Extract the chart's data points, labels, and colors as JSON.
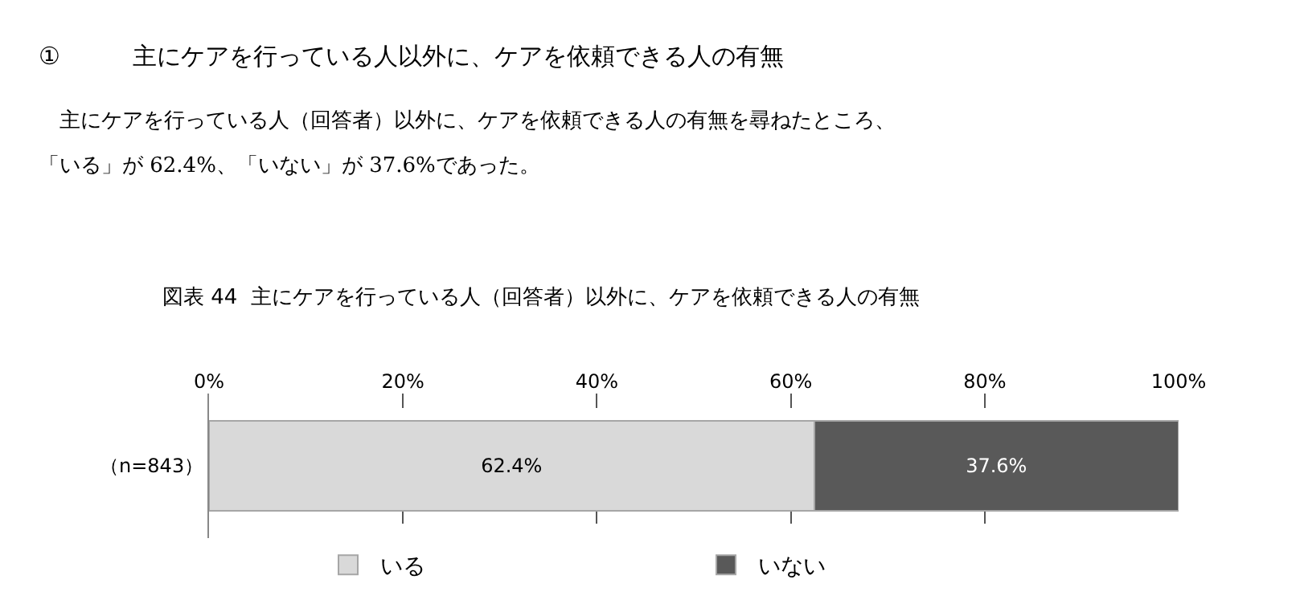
{
  "chart_data": {
    "type": "bar",
    "orientation": "horizontal",
    "stacked": true,
    "title": "図表 44  主にケアを行っている人（回答者）以外に、ケアを依頼できる人の有無",
    "annotations": [
      "①　　　主にケアを行っている人以外に、ケアを依頼できる人の有無",
      "　主にケアを行っている人（回答者）以外に、ケアを依頼できる人の有無を尋ねたところ、",
      "「いる」が 62.4%、「いない」が 37.6%であった。"
    ],
    "categories": [
      "（n=843）"
    ],
    "series": [
      {
        "name": "いる",
        "color": "#d9d9d9",
        "values": [
          62.4
        ],
        "value_labels": [
          "62.4%"
        ]
      },
      {
        "name": "いない",
        "color": "#595959",
        "values": [
          37.6
        ],
        "value_labels": [
          "37.6%"
        ]
      }
    ],
    "xlim": [
      0,
      100
    ],
    "xticks": [
      {
        "value": 0,
        "label": "0%"
      },
      {
        "value": 20,
        "label": "20%"
      },
      {
        "value": 40,
        "label": "40%"
      },
      {
        "value": 60,
        "label": "60%"
      },
      {
        "value": 80,
        "label": "80%"
      },
      {
        "value": 100,
        "label": "100%"
      }
    ],
    "grid": "x",
    "legend": "bottom"
  }
}
